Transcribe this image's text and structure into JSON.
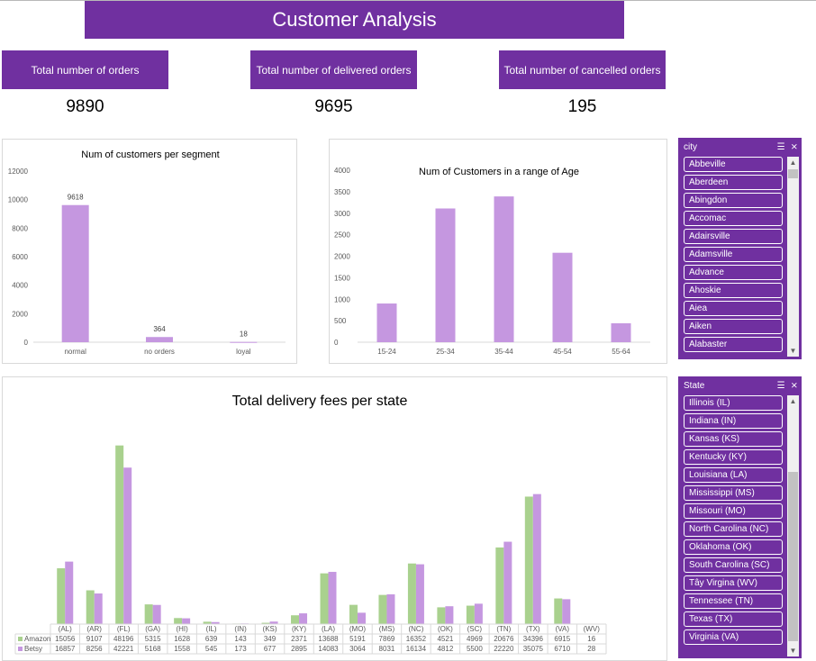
{
  "title": "Customer Analysis",
  "kpis": [
    {
      "label": "Total number of orders",
      "value": "9890"
    },
    {
      "label": "Total number of delivered orders",
      "value": "9695"
    },
    {
      "label": "Total number of cancelled orders",
      "value": "195"
    }
  ],
  "colors": {
    "purple": "#7030a0",
    "bar_purple": "#c597e0",
    "bar_green": "#a9d18e"
  },
  "chart_data": [
    {
      "type": "bar",
      "title": "Num of customers per segment",
      "categories": [
        "normal",
        "no orders",
        "loyal"
      ],
      "values": [
        9618,
        364,
        18
      ],
      "data_labels": [
        "9618",
        "364",
        "18"
      ],
      "yticks": [
        "0",
        "2000",
        "4000",
        "6000",
        "8000",
        "10000",
        "12000"
      ],
      "ylim": [
        0,
        12000
      ]
    },
    {
      "type": "bar",
      "title": "Num of Customers in a range of Age",
      "categories": [
        "15-24",
        "25-34",
        "35-44",
        "45-54",
        "55-64"
      ],
      "values": [
        900,
        3110,
        3390,
        2080,
        440
      ],
      "yticks": [
        "0",
        "500",
        "1000",
        "1500",
        "2000",
        "2500",
        "3000",
        "3500",
        "4000"
      ],
      "ylim": [
        0,
        4000
      ]
    },
    {
      "type": "bar",
      "title": "Total delivery fees per state",
      "categories": [
        "(AL)",
        "(AR)",
        "(FL)",
        "(GA)",
        "(HI)",
        "(IL)",
        "(IN)",
        "(KS)",
        "(KY)",
        "(LA)",
        "(MO)",
        "(MS)",
        "(NC)",
        "(OK)",
        "(SC)",
        "(TN)",
        "(TX)",
        "(VA)",
        "(WV)"
      ],
      "series": [
        {
          "name": "Amazon",
          "values": [
            15056,
            9107,
            48196,
            5315,
            1628,
            639,
            143,
            349,
            2371,
            13688,
            5191,
            7869,
            16352,
            4521,
            4969,
            20676,
            34396,
            6915,
            16
          ],
          "labels": [
            "15056",
            "9107",
            "48196",
            "5315",
            "1628",
            "639",
            "143",
            "349",
            "2371",
            "13688",
            "5191",
            "7869",
            "16352",
            "4521",
            "4969",
            "20676",
            "34396",
            "6915",
            "16"
          ]
        },
        {
          "name": "Betsy",
          "values": [
            16857,
            8256,
            42221,
            5168,
            1558,
            545,
            173,
            677,
            2895,
            14083,
            3064,
            8031,
            16134,
            4812,
            5500,
            22220,
            35075,
            6710,
            28
          ],
          "labels": [
            "16857",
            "8256",
            "42221",
            "5168",
            "1558",
            "545",
            "173",
            "677",
            "2895",
            "14083",
            "3064",
            "8031",
            "16134",
            "4812",
            "5500",
            "22220",
            "35075",
            "6710",
            "28"
          ]
        }
      ]
    }
  ],
  "slicers": {
    "city": {
      "header": "city",
      "items": [
        "Abbeville",
        "Aberdeen",
        "Abingdon",
        "Accomac",
        "Adairsville",
        "Adamsville",
        "Advance",
        "Ahoskie",
        "Aiea",
        "Aiken",
        "Alabaster"
      ]
    },
    "state": {
      "header": "State",
      "items": [
        "Illinois (IL)",
        "Indiana (IN)",
        "Kansas (KS)",
        "Kentucky (KY)",
        "Louisiana (LA)",
        "Mississippi (MS)",
        "Missouri (MO)",
        "North Carolina (NC)",
        "Oklahoma (OK)",
        "South Carolina (SC)",
        "Tây Virgina (WV)",
        "Tennessee (TN)",
        "Texas (TX)",
        "Virginia (VA)"
      ]
    }
  }
}
